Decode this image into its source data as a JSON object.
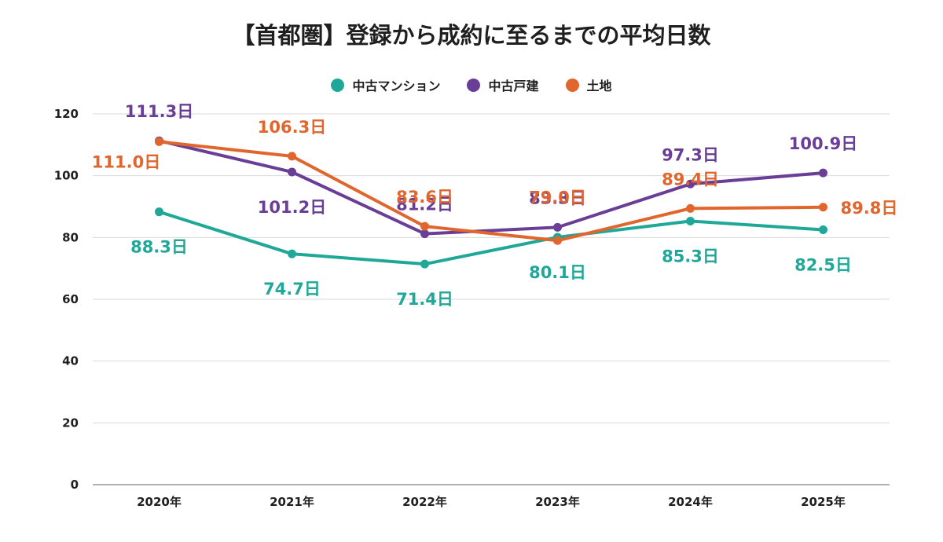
{
  "title": "【首都圏】登録から成約に至るまでの平均日数",
  "colors": {
    "condo": "#1fa898",
    "house": "#6a3d97",
    "land": "#e0662d",
    "grid": "#d9d9d9",
    "axis": "#7f7f7f"
  },
  "legend": [
    {
      "label": "中古マンション",
      "color": "#1fa898"
    },
    {
      "label": "中古戸建",
      "color": "#6a3d97"
    },
    {
      "label": "土地",
      "color": "#e0662d"
    }
  ],
  "chart_data": {
    "type": "line",
    "title": "【首都圏】登録から成約に至るまでの平均日数",
    "categories": [
      "2020年",
      "2021年",
      "2022年",
      "2023年",
      "2024年",
      "2025年"
    ],
    "yticks": [
      0,
      20,
      40,
      60,
      80,
      100,
      120
    ],
    "ylim": [
      0,
      120
    ],
    "grid": true,
    "legend_position": "top",
    "series": [
      {
        "name": "中古マンション",
        "color": "#1fa898",
        "values": [
          88.3,
          74.7,
          71.4,
          80.1,
          85.3,
          82.5
        ],
        "labels": [
          "88.3日",
          "74.7日",
          "71.4日",
          "80.1日",
          "85.3日",
          "82.5日"
        ],
        "label_side": [
          "below",
          "below",
          "below",
          "below",
          "below",
          "below"
        ]
      },
      {
        "name": "中古戸建",
        "color": "#6a3d97",
        "values": [
          111.3,
          101.2,
          81.2,
          83.3,
          97.3,
          100.9
        ],
        "labels": [
          "111.3日",
          "101.2日",
          "81.2日",
          "83.3日",
          "97.3日",
          "100.9日"
        ],
        "label_side": [
          "above",
          "below",
          "above",
          "above",
          "above",
          "above"
        ]
      },
      {
        "name": "土地",
        "color": "#e0662d",
        "values": [
          111.0,
          106.3,
          83.6,
          79.0,
          89.4,
          89.8
        ],
        "labels": [
          "111.0日",
          "106.3日",
          "83.6日",
          "79.0日",
          "89.4日",
          "89.8日"
        ],
        "label_side": [
          "below",
          "above",
          "above",
          "above",
          "above",
          "right"
        ]
      }
    ]
  }
}
